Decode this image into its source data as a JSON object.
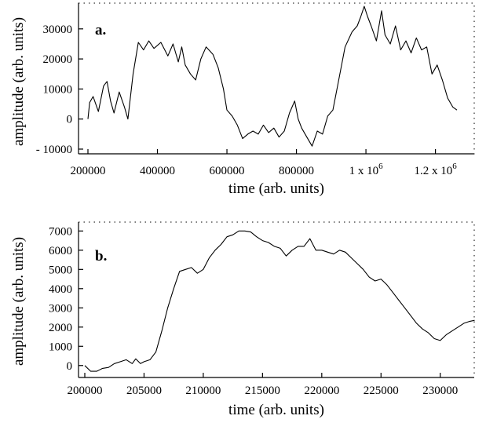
{
  "chart_data": [
    {
      "type": "line",
      "panel_label": "a.",
      "xlabel": "time (arb. units)",
      "ylabel": "amplitude (arb. units)",
      "xlim": [
        200000,
        1280000
      ],
      "ylim": [
        -10000,
        37000
      ],
      "x_ticks": [
        {
          "value": 200000,
          "label": "200000"
        },
        {
          "value": 400000,
          "label": "400000"
        },
        {
          "value": 600000,
          "label": "600000"
        },
        {
          "value": 800000,
          "label": "800000"
        },
        {
          "value": 1000000,
          "label": "1 x 10",
          "sup": "6"
        },
        {
          "value": 1200000,
          "label": "1.2 x 10",
          "sup": "6"
        }
      ],
      "y_ticks": [
        {
          "value": -10000,
          "label": "- 10000"
        },
        {
          "value": 0,
          "label": "0"
        },
        {
          "value": 10000,
          "label": "10000"
        },
        {
          "value": 20000,
          "label": "20000"
        },
        {
          "value": 30000,
          "label": "30000"
        }
      ],
      "series": [
        {
          "x": [
            200000,
            205000,
            215000,
            230000,
            245000,
            255000,
            265000,
            275000,
            290000,
            305000,
            315000,
            330000,
            345000,
            360000,
            375000,
            390000,
            410000,
            430000,
            445000,
            460000,
            470000,
            480000,
            495000,
            510000,
            525000,
            540000,
            560000,
            575000,
            590000,
            600000,
            615000,
            630000,
            645000,
            660000,
            675000,
            690000,
            705000,
            720000,
            735000,
            750000,
            765000,
            780000,
            795000,
            805000,
            815000,
            830000,
            845000,
            860000,
            875000,
            890000,
            905000,
            920000,
            940000,
            960000,
            975000,
            985000,
            995000,
            1005000,
            1015000,
            1030000,
            1045000,
            1055000,
            1070000,
            1085000,
            1100000,
            1115000,
            1130000,
            1145000,
            1160000,
            1175000,
            1190000,
            1205000,
            1220000,
            1235000,
            1250000,
            1262000
          ],
          "y": [
            0,
            5500,
            7500,
            2500,
            11000,
            12500,
            6000,
            2000,
            9000,
            4000,
            0,
            15000,
            25500,
            23000,
            26000,
            23500,
            25500,
            21000,
            25000,
            19000,
            24000,
            18000,
            15000,
            13000,
            20000,
            24000,
            21500,
            17000,
            10000,
            3000,
            1000,
            -2000,
            -6500,
            -5000,
            -4000,
            -5000,
            -2000,
            -4500,
            -3000,
            -6000,
            -4000,
            2000,
            6000,
            0,
            -3000,
            -6000,
            -9000,
            -4000,
            -5000,
            1000,
            3000,
            12000,
            24000,
            29000,
            31000,
            34000,
            37500,
            34000,
            31000,
            26000,
            36000,
            28000,
            25000,
            31000,
            23000,
            26000,
            22000,
            27000,
            23000,
            24000,
            15000,
            18000,
            13000,
            7000,
            4000,
            3000
          ]
        }
      ]
    },
    {
      "type": "line",
      "panel_label": "b.",
      "xlabel": "time (arb. units)",
      "ylabel": "amplitude (arb. units)",
      "xlim": [
        200000,
        233000
      ],
      "ylim": [
        -500,
        7300
      ],
      "x_ticks": [
        {
          "value": 200000,
          "label": "200000"
        },
        {
          "value": 205000,
          "label": "205000"
        },
        {
          "value": 210000,
          "label": "210000"
        },
        {
          "value": 215000,
          "label": "215000"
        },
        {
          "value": 220000,
          "label": "220000"
        },
        {
          "value": 225000,
          "label": "225000"
        },
        {
          "value": 230000,
          "label": "230000"
        }
      ],
      "y_ticks": [
        {
          "value": 0,
          "label": "0"
        },
        {
          "value": 1000,
          "label": "1000"
        },
        {
          "value": 2000,
          "label": "2000"
        },
        {
          "value": 3000,
          "label": "3000"
        },
        {
          "value": 4000,
          "label": "4000"
        },
        {
          "value": 5000,
          "label": "5000"
        },
        {
          "value": 6000,
          "label": "6000"
        },
        {
          "value": 7000,
          "label": "7000"
        }
      ],
      "series": [
        {
          "x": [
            200000,
            200500,
            201000,
            201500,
            202000,
            202500,
            203000,
            203500,
            204000,
            204300,
            204700,
            205000,
            205500,
            206000,
            206500,
            207000,
            207500,
            208000,
            208500,
            209000,
            209500,
            210000,
            210500,
            211000,
            211500,
            212000,
            212500,
            213000,
            213500,
            214000,
            214500,
            215000,
            215500,
            216000,
            216500,
            217000,
            217500,
            218000,
            218500,
            219000,
            219500,
            220000,
            220500,
            221000,
            221500,
            222000,
            222500,
            223000,
            223500,
            224000,
            224500,
            225000,
            225500,
            226000,
            226500,
            227000,
            227500,
            228000,
            228500,
            229000,
            229500,
            230000,
            230500,
            231000,
            231500,
            232000,
            232500,
            232900
          ],
          "y": [
            0,
            -300,
            -300,
            -150,
            -100,
            100,
            200,
            300,
            100,
            350,
            100,
            200,
            300,
            700,
            1800,
            3000,
            4000,
            4900,
            5000,
            5100,
            4800,
            5000,
            5600,
            6000,
            6300,
            6700,
            6800,
            7000,
            7000,
            6950,
            6700,
            6500,
            6400,
            6200,
            6100,
            5700,
            6000,
            6200,
            6200,
            6600,
            6000,
            6000,
            5900,
            5800,
            6000,
            5900,
            5600,
            5300,
            5000,
            4600,
            4400,
            4500,
            4200,
            3800,
            3400,
            3000,
            2600,
            2200,
            1900,
            1700,
            1400,
            1300,
            1600,
            1800,
            2000,
            2200,
            2300,
            2350
          ]
        }
      ]
    }
  ]
}
